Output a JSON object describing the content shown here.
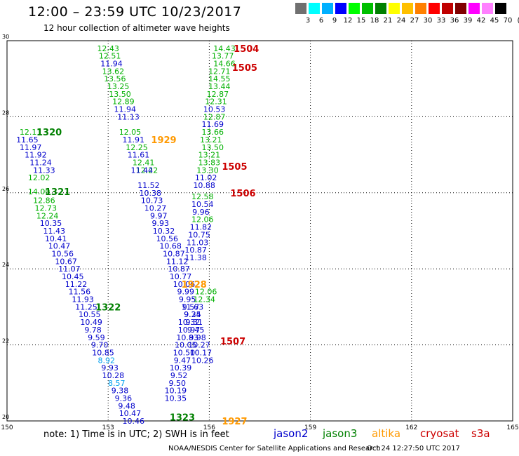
{
  "title": "12:00 – 23:59 UTC 10/23/2017",
  "subtitle": "12 hour collection of altimeter wave heights",
  "note": "note: 1) Time is in UTC; 2) SWH is in feet",
  "credit": "NOAA/NESDIS Center for Satellite Applications and Research",
  "timestamp": "Oct 24 12:27:50 UTC 2017",
  "color_scale": {
    "labels": [
      "3",
      "6",
      "9",
      "12",
      "15",
      "18",
      "21",
      "24",
      "27",
      "30",
      "33",
      "36",
      "39",
      "42",
      "45",
      "70"
    ],
    "unit": "(ft)",
    "colors": [
      "#707070",
      "#00ffff",
      "#00b0ff",
      "#0000ff",
      "#00ff00",
      "#00c000",
      "#008000",
      "#ffff00",
      "#ffc000",
      "#ff8000",
      "#ff0000",
      "#c00000",
      "#800000",
      "#ff00ff",
      "#ff80ff",
      "#000000"
    ]
  },
  "legend": [
    {
      "name": "jason2",
      "color": "#0000cc"
    },
    {
      "name": "jason3",
      "color": "#008000"
    },
    {
      "name": "altika",
      "color": "#ff9900"
    },
    {
      "name": "cryosat",
      "color": "#cc0000"
    },
    {
      "name": "s3a",
      "color": "#cc0000"
    }
  ],
  "chart_data": {
    "type": "scatter",
    "x_ticks": [
      "150",
      "153",
      "156",
      "159",
      "162",
      "165"
    ],
    "y_ticks": [
      "30",
      "28",
      "26",
      "24",
      "22",
      "20"
    ],
    "xlim": [
      150,
      165
    ],
    "ylim": [
      20,
      30
    ],
    "grid": true,
    "tracks": [
      {
        "c": "#00b000",
        "pts": [
          [
            "12.11",
            150.7,
            27.6
          ],
          [
            "14.00",
            150.95,
            26.03
          ],
          [
            "12.86",
            151.1,
            25.8
          ],
          [
            "12.73",
            151.15,
            25.6
          ],
          [
            "12.24",
            151.2,
            25.4
          ]
        ]
      },
      {
        "c": "#0000cc",
        "pts": [
          [
            "11.65",
            150.6,
            27.4
          ],
          [
            "11.97",
            150.7,
            27.2
          ],
          [
            "11.92",
            150.85,
            27.0
          ],
          [
            "11.24",
            151.0,
            26.8
          ],
          [
            "11.33",
            151.1,
            26.6
          ],
          [
            "10.35",
            151.3,
            25.2
          ],
          [
            "11.43",
            151.4,
            25.0
          ],
          [
            "10.41",
            151.45,
            24.8
          ],
          [
            "10.47",
            151.55,
            24.6
          ],
          [
            "10.56",
            151.65,
            24.4
          ],
          [
            "10.67",
            151.75,
            24.2
          ],
          [
            "11.07",
            151.85,
            24.0
          ],
          [
            "10.45",
            151.95,
            23.8
          ],
          [
            "11.22",
            152.05,
            23.6
          ],
          [
            "11.56",
            152.15,
            23.4
          ],
          [
            "11.93",
            152.25,
            23.2
          ],
          [
            "11.25",
            152.35,
            23.0
          ],
          [
            "10.55",
            152.45,
            22.8
          ],
          [
            "10.49",
            152.5,
            22.6
          ],
          [
            "9.78",
            152.55,
            22.4
          ],
          [
            "9.59",
            152.65,
            22.2
          ],
          [
            "9.70",
            152.75,
            22.0
          ],
          [
            "10.85",
            152.85,
            21.8
          ],
          [
            "9.93",
            153.05,
            21.4
          ],
          [
            "10.28",
            153.15,
            21.2
          ],
          [
            "9.38",
            153.35,
            20.8
          ],
          [
            "9.36",
            153.45,
            20.6
          ],
          [
            "9.48",
            153.55,
            20.4
          ],
          [
            "10.47",
            153.65,
            20.2
          ],
          [
            "10.46",
            153.75,
            20.0
          ]
        ]
      },
      {
        "c": "#00b000",
        "pts": [
          [
            "12.02",
            150.95,
            26.4
          ]
        ]
      },
      {
        "c": "#00a0ee",
        "pts": [
          [
            "8.92",
            152.95,
            21.6
          ],
          [
            "8.57",
            153.25,
            21.0
          ]
        ]
      },
      {
        "c": "#00b000",
        "pts": [
          [
            "12.43",
            153.0,
            29.8
          ],
          [
            "12.51",
            153.05,
            29.6
          ],
          [
            "13.62",
            153.15,
            29.2
          ],
          [
            "13.56",
            153.2,
            29.0
          ],
          [
            "13.25",
            153.3,
            28.8
          ],
          [
            "13.50",
            153.35,
            28.6
          ],
          [
            "12.89",
            153.45,
            28.4
          ],
          [
            "12.05",
            153.65,
            27.6
          ],
          [
            "12.25",
            153.85,
            27.2
          ],
          [
            "12.41",
            154.05,
            26.8
          ],
          [
            "12.22",
            154.15,
            26.6
          ]
        ]
      },
      {
        "c": "#0000cc",
        "pts": [
          [
            "11.94",
            153.1,
            29.4
          ],
          [
            "11.94",
            153.5,
            28.2
          ],
          [
            "11.13",
            153.6,
            28.0
          ],
          [
            "11.91",
            153.75,
            27.4
          ],
          [
            "11.61",
            153.9,
            27.0
          ],
          [
            "11.44",
            154.0,
            26.6
          ],
          [
            "11.52",
            154.2,
            26.2
          ],
          [
            "10.38",
            154.25,
            26.0
          ],
          [
            "10.73",
            154.3,
            25.8
          ],
          [
            "10.27",
            154.4,
            25.6
          ],
          [
            "9.97",
            154.5,
            25.4
          ],
          [
            "9.93",
            154.55,
            25.2
          ],
          [
            "10.32",
            154.65,
            25.0
          ],
          [
            "10.56",
            154.75,
            24.8
          ],
          [
            "10.68",
            154.85,
            24.6
          ],
          [
            "10.87",
            154.95,
            24.4
          ],
          [
            "11.12",
            155.05,
            24.2
          ],
          [
            "10.87",
            155.1,
            24.0
          ],
          [
            "10.77",
            155.15,
            23.8
          ],
          [
            "10.06",
            155.25,
            23.6
          ],
          [
            "9.99",
            155.3,
            23.4
          ],
          [
            "9.95",
            155.35,
            23.2
          ],
          [
            "9.57",
            155.45,
            23.0
          ],
          [
            "9.25",
            155.5,
            22.8
          ],
          [
            "9.31",
            155.55,
            22.6
          ],
          [
            "9.45",
            155.6,
            22.4
          ],
          [
            "9.98",
            155.65,
            22.2
          ],
          [
            "10.27",
            155.7,
            22.0
          ],
          [
            "10.17",
            155.75,
            21.8
          ],
          [
            "10.26",
            155.8,
            21.6
          ]
        ]
      },
      {
        "c": "#00b000",
        "pts": [
          [
            "14.43",
            156.45,
            29.8
          ],
          [
            "13.77",
            156.4,
            29.6
          ],
          [
            "14.66",
            156.45,
            29.4
          ],
          [
            "12.71",
            156.3,
            29.2
          ],
          [
            "14.55",
            156.3,
            29.0
          ],
          [
            "13.44",
            156.3,
            28.8
          ],
          [
            "12.87",
            156.25,
            28.6
          ],
          [
            "12.31",
            156.2,
            28.4
          ],
          [
            "12.87",
            156.15,
            28.0
          ],
          [
            "13.66",
            156.1,
            27.6
          ],
          [
            "13.21",
            156.05,
            27.4
          ],
          [
            "13.50",
            156.1,
            27.2
          ],
          [
            "13.21",
            156.0,
            27.0
          ],
          [
            "13.83",
            156.0,
            26.8
          ],
          [
            "13.30",
            155.95,
            26.6
          ],
          [
            "12.58",
            155.8,
            25.9
          ],
          [
            "12.06",
            155.8,
            25.3
          ],
          [
            "12.06",
            155.9,
            23.4
          ],
          [
            "12.34",
            155.85,
            23.2
          ]
        ]
      },
      {
        "c": "#0000cc",
        "pts": [
          [
            "10.53",
            156.15,
            28.2
          ],
          [
            "11.69",
            156.1,
            27.8
          ],
          [
            "11.02",
            155.9,
            26.4
          ],
          [
            "10.88",
            155.85,
            26.2
          ],
          [
            "10.54",
            155.8,
            25.7
          ],
          [
            "9.96",
            155.75,
            25.5
          ],
          [
            "11.82",
            155.75,
            25.1
          ],
          [
            "10.75",
            155.7,
            24.9
          ],
          [
            "11.03",
            155.65,
            24.7
          ],
          [
            "10.87",
            155.6,
            24.5
          ],
          [
            "11.38",
            155.6,
            24.3
          ],
          [
            "11.63",
            155.5,
            23.0
          ],
          [
            "9.34",
            155.5,
            22.8
          ],
          [
            "10.32",
            155.4,
            22.6
          ],
          [
            "10.97",
            155.4,
            22.4
          ],
          [
            "10.83",
            155.35,
            22.2
          ],
          [
            "10.05",
            155.3,
            22.0
          ],
          [
            "10.50",
            155.25,
            21.8
          ],
          [
            "9.47",
            155.2,
            21.6
          ],
          [
            "10.39",
            155.15,
            21.4
          ],
          [
            "9.52",
            155.1,
            21.2
          ],
          [
            "9.50",
            155.05,
            21.0
          ],
          [
            "10.19",
            155.0,
            20.8
          ],
          [
            "10.35",
            155.0,
            20.6
          ]
        ]
      }
    ],
    "ids": [
      {
        "t": "1320",
        "c": "#008000",
        "x": 151.25,
        "y": 27.6
      },
      {
        "t": "1321",
        "c": "#008000",
        "x": 151.5,
        "y": 26.03
      },
      {
        "t": "1322",
        "c": "#008000",
        "x": 153.0,
        "y": 23.0
      },
      {
        "t": "1323",
        "c": "#008000",
        "x": 155.2,
        "y": 20.1
      },
      {
        "t": "1929",
        "c": "#ff9900",
        "x": 154.65,
        "y": 27.4
      },
      {
        "t": "1928",
        "c": "#ff9900",
        "x": 155.55,
        "y": 23.6
      },
      {
        "t": "1927",
        "c": "#ff9900",
        "x": 156.75,
        "y": 20.0
      },
      {
        "t": "1504",
        "c": "#cc0000",
        "x": 157.1,
        "y": 29.8
      },
      {
        "t": "1505",
        "c": "#cc0000",
        "x": 157.05,
        "y": 29.3
      },
      {
        "t": "1505",
        "c": "#cc0000",
        "x": 156.75,
        "y": 26.7
      },
      {
        "t": "1506",
        "c": "#cc0000",
        "x": 157.0,
        "y": 26.0
      },
      {
        "t": "1507",
        "c": "#cc0000",
        "x": 156.7,
        "y": 22.1
      }
    ]
  }
}
